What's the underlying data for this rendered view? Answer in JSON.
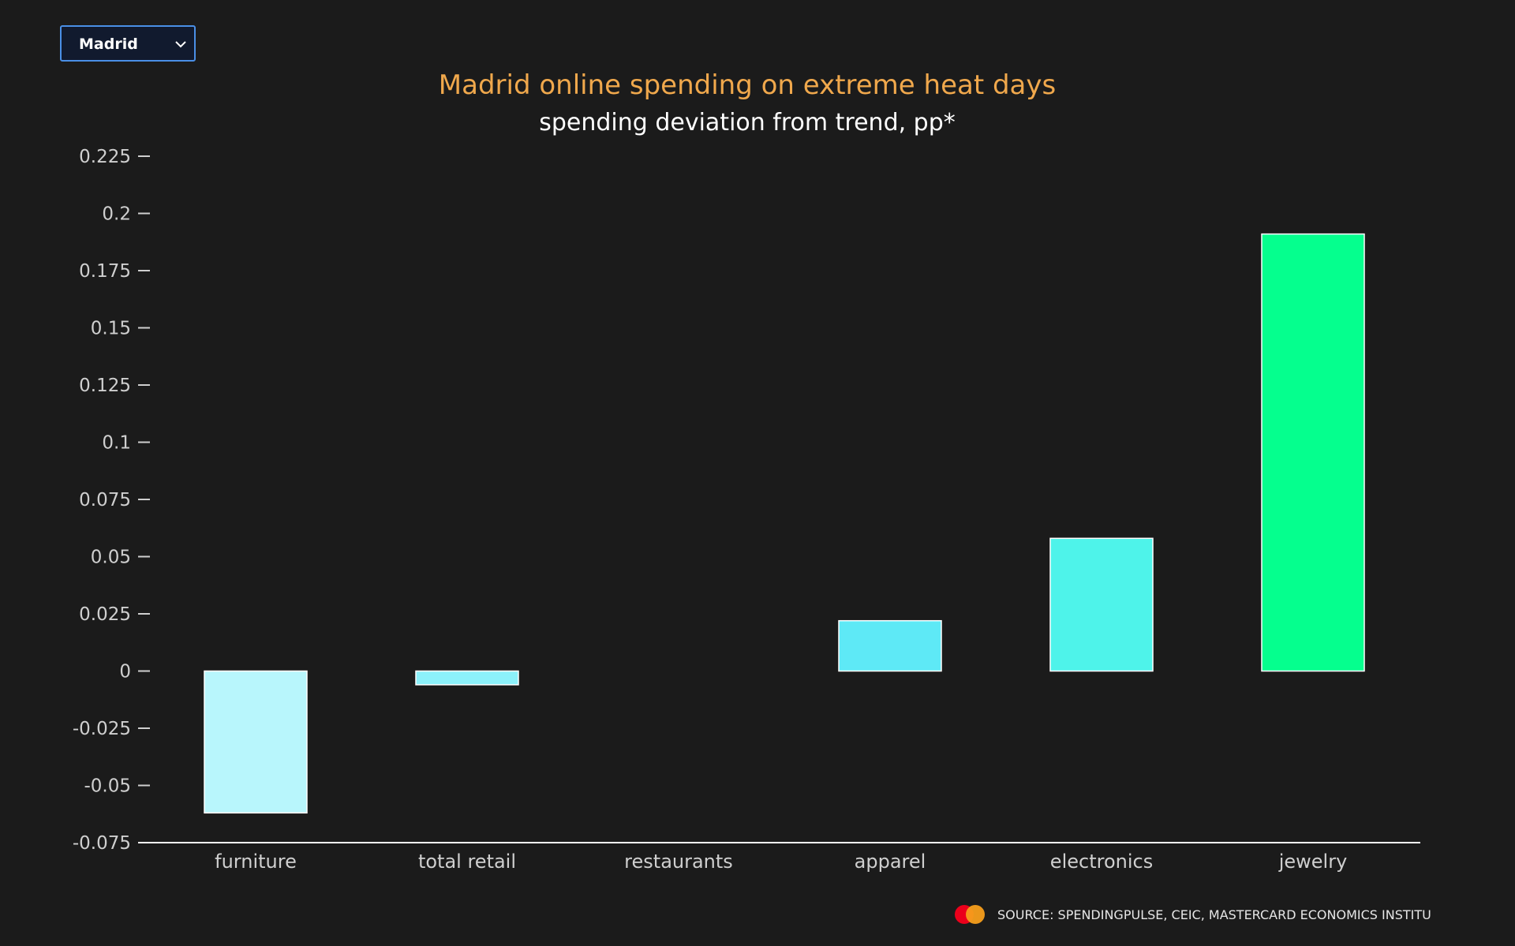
{
  "dropdown": {
    "selected": "Madrid",
    "icon": "chevron-down-icon"
  },
  "source": {
    "text": "SOURCE: SPENDINGPULSE, CEIC, MASTERCARD ECONOMICS INSTITU",
    "logo_icon": "mastercard-logo"
  },
  "colors": {
    "background": "#1b1b1b",
    "title": "#f0a84c",
    "subtitle": "#ffffff",
    "bar_outline": "#ffffff"
  },
  "chart_data": {
    "type": "bar",
    "title": "Madrid online spending on extreme heat days",
    "subtitle": "spending deviation from trend, pp*",
    "xlabel": "",
    "ylabel": "",
    "categories": [
      "furniture",
      "total retail",
      "restaurants",
      "apparel",
      "electronics",
      "jewelry"
    ],
    "values": [
      -0.062,
      -0.006,
      0,
      0.022,
      0.058,
      0.191
    ],
    "bar_colors": [
      "#b8f6fc",
      "#8cf1fa",
      "#7eeefa",
      "#5ee9f6",
      "#4ef3ea",
      "#05ff8e"
    ],
    "ylim": [
      -0.075,
      0.225
    ],
    "yticks": [
      {
        "value": 0.225,
        "label": "0.225"
      },
      {
        "value": 0.2,
        "label": "0.2"
      },
      {
        "value": 0.175,
        "label": "0.175"
      },
      {
        "value": 0.15,
        "label": "0.15"
      },
      {
        "value": 0.125,
        "label": "0.125"
      },
      {
        "value": 0.1,
        "label": "0.1"
      },
      {
        "value": 0.075,
        "label": "0.075"
      },
      {
        "value": 0.05,
        "label": "0.05"
      },
      {
        "value": 0.025,
        "label": "0.025"
      },
      {
        "value": 0,
        "label": "0"
      },
      {
        "value": -0.025,
        "label": "-0.025"
      },
      {
        "value": -0.05,
        "label": "-0.05"
      },
      {
        "value": -0.075,
        "label": "-0.075"
      }
    ],
    "grid": false,
    "legend": "none"
  }
}
